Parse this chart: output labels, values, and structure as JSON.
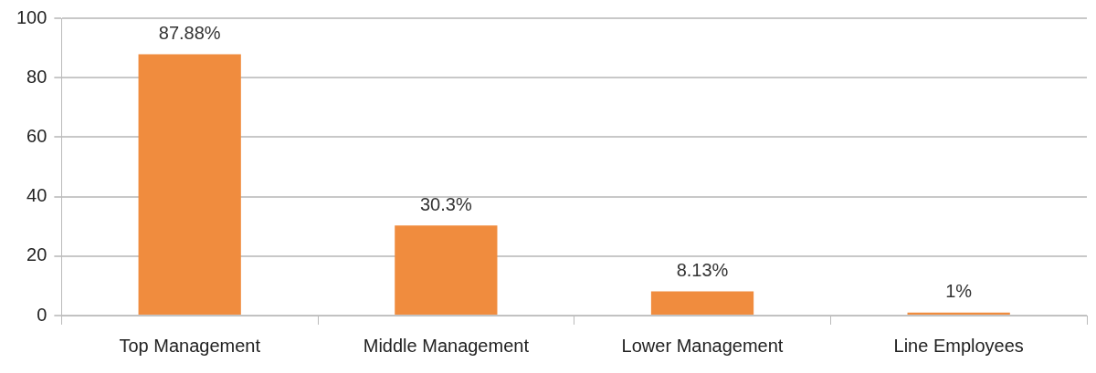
{
  "chart_data": {
    "type": "bar",
    "categories": [
      "Top Management",
      "Middle Management",
      "Lower Management",
      "Line Employees"
    ],
    "values": [
      87.88,
      30.3,
      8.13,
      1
    ],
    "value_labels": [
      "87.88%",
      "30.3%",
      "8.13%",
      "1%"
    ],
    "color": "#f08c3e",
    "ylim": [
      0,
      100
    ],
    "yticks": [
      0,
      20,
      40,
      60,
      80,
      100
    ],
    "grid": "y",
    "legend": false
  }
}
